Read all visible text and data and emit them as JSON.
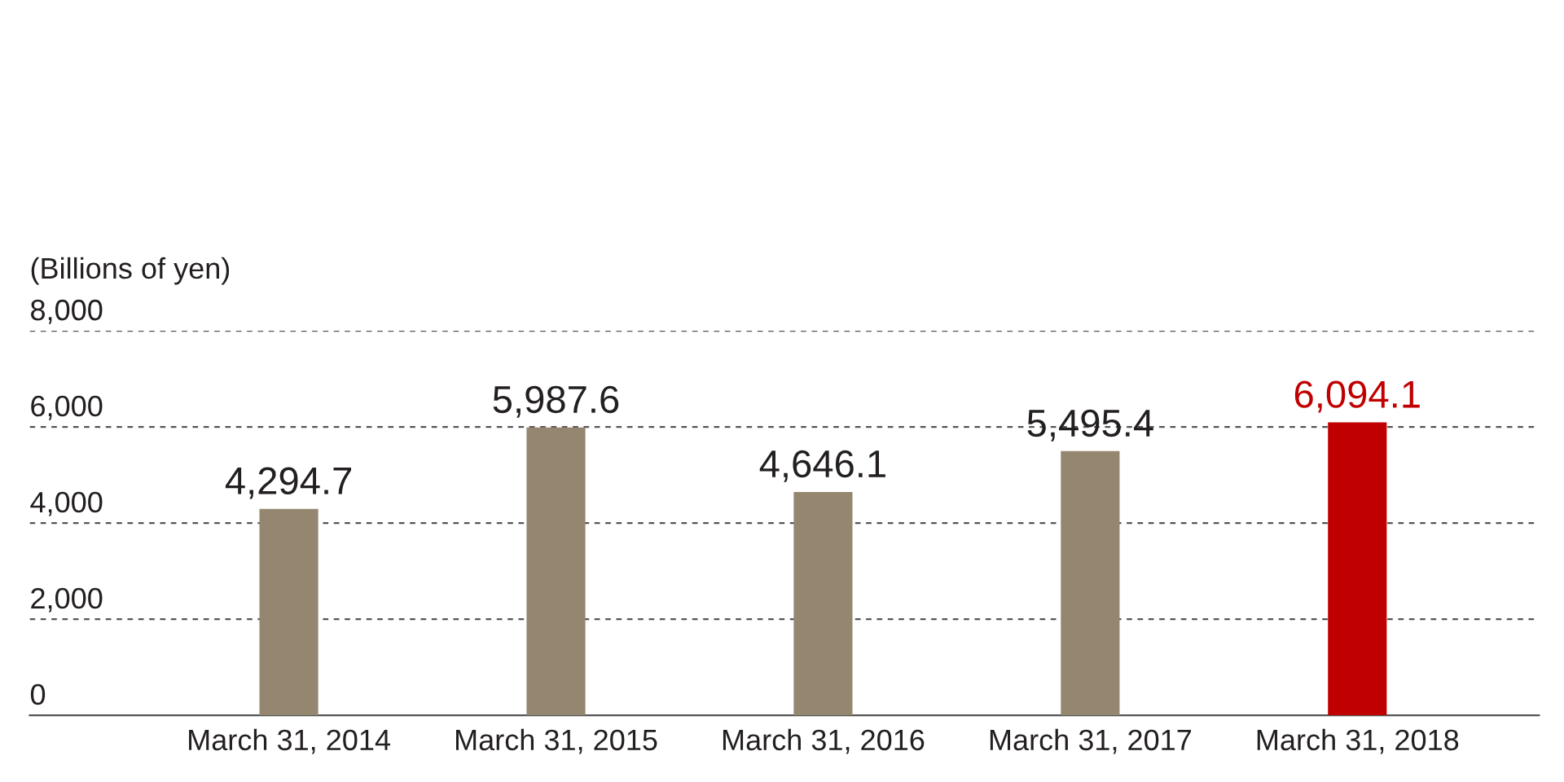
{
  "chart_data": {
    "type": "bar",
    "ylabel": "(Billions of yen)",
    "categories": [
      "March 31, 2014",
      "March 31, 2015",
      "March 31, 2016",
      "March 31, 2017",
      "March 31, 2018"
    ],
    "values": [
      4294.7,
      5987.6,
      4646.1,
      5495.4,
      6094.1
    ],
    "colors": [
      "#958670",
      "#958670",
      "#958670",
      "#958670",
      "#c00000"
    ],
    "ylim": [
      0,
      8000
    ],
    "yticks": [
      {
        "value": 0,
        "label": "0"
      },
      {
        "value": 2000,
        "label": "2,000"
      },
      {
        "value": 4000,
        "label": "4,000"
      },
      {
        "value": 6000,
        "label": "6,000"
      },
      {
        "value": 8000,
        "label": "8,000"
      }
    ],
    "value_labels": [
      "4,294.7",
      "5,987.6",
      "4,646.1",
      "5,495.4",
      "6,094.1"
    ],
    "grid": "y",
    "legend": false
  }
}
